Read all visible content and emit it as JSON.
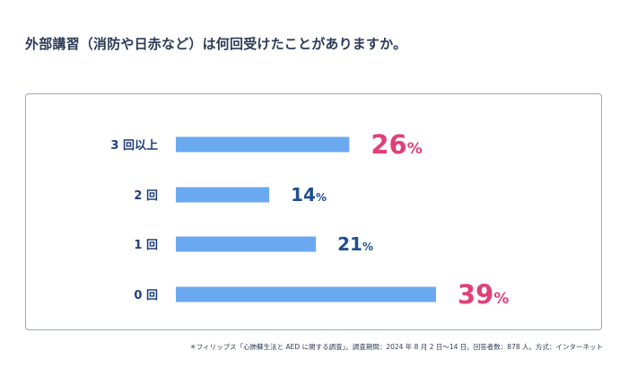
{
  "title": "外部講習（消防や日赤など）は何回受けたことがありますか。",
  "footnote": "＊フィリップス「心肺蘇生法と AED に関する調査」。調査期間：2024 年 8 月 2 日〜14 日。回答者数：878 人。方式：インターネット",
  "colors": {
    "bar": "#6aa9ef",
    "highlight": "#e0407a",
    "normal": "#1f4f8f",
    "label": "#1f3f7a"
  },
  "chart_data": {
    "type": "bar",
    "orientation": "horizontal",
    "categories": [
      "3 回以上",
      "2 回",
      "1 回",
      "0 回"
    ],
    "values": [
      26,
      14,
      21,
      39
    ],
    "value_labels": [
      "26",
      "14",
      "21",
      "39"
    ],
    "unit": "%",
    "highlighted": [
      true,
      false,
      false,
      true
    ],
    "xlim": [
      0,
      39
    ],
    "grid": false,
    "title": "外部講習（消防や日赤など）は何回受けたことがありますか。"
  }
}
